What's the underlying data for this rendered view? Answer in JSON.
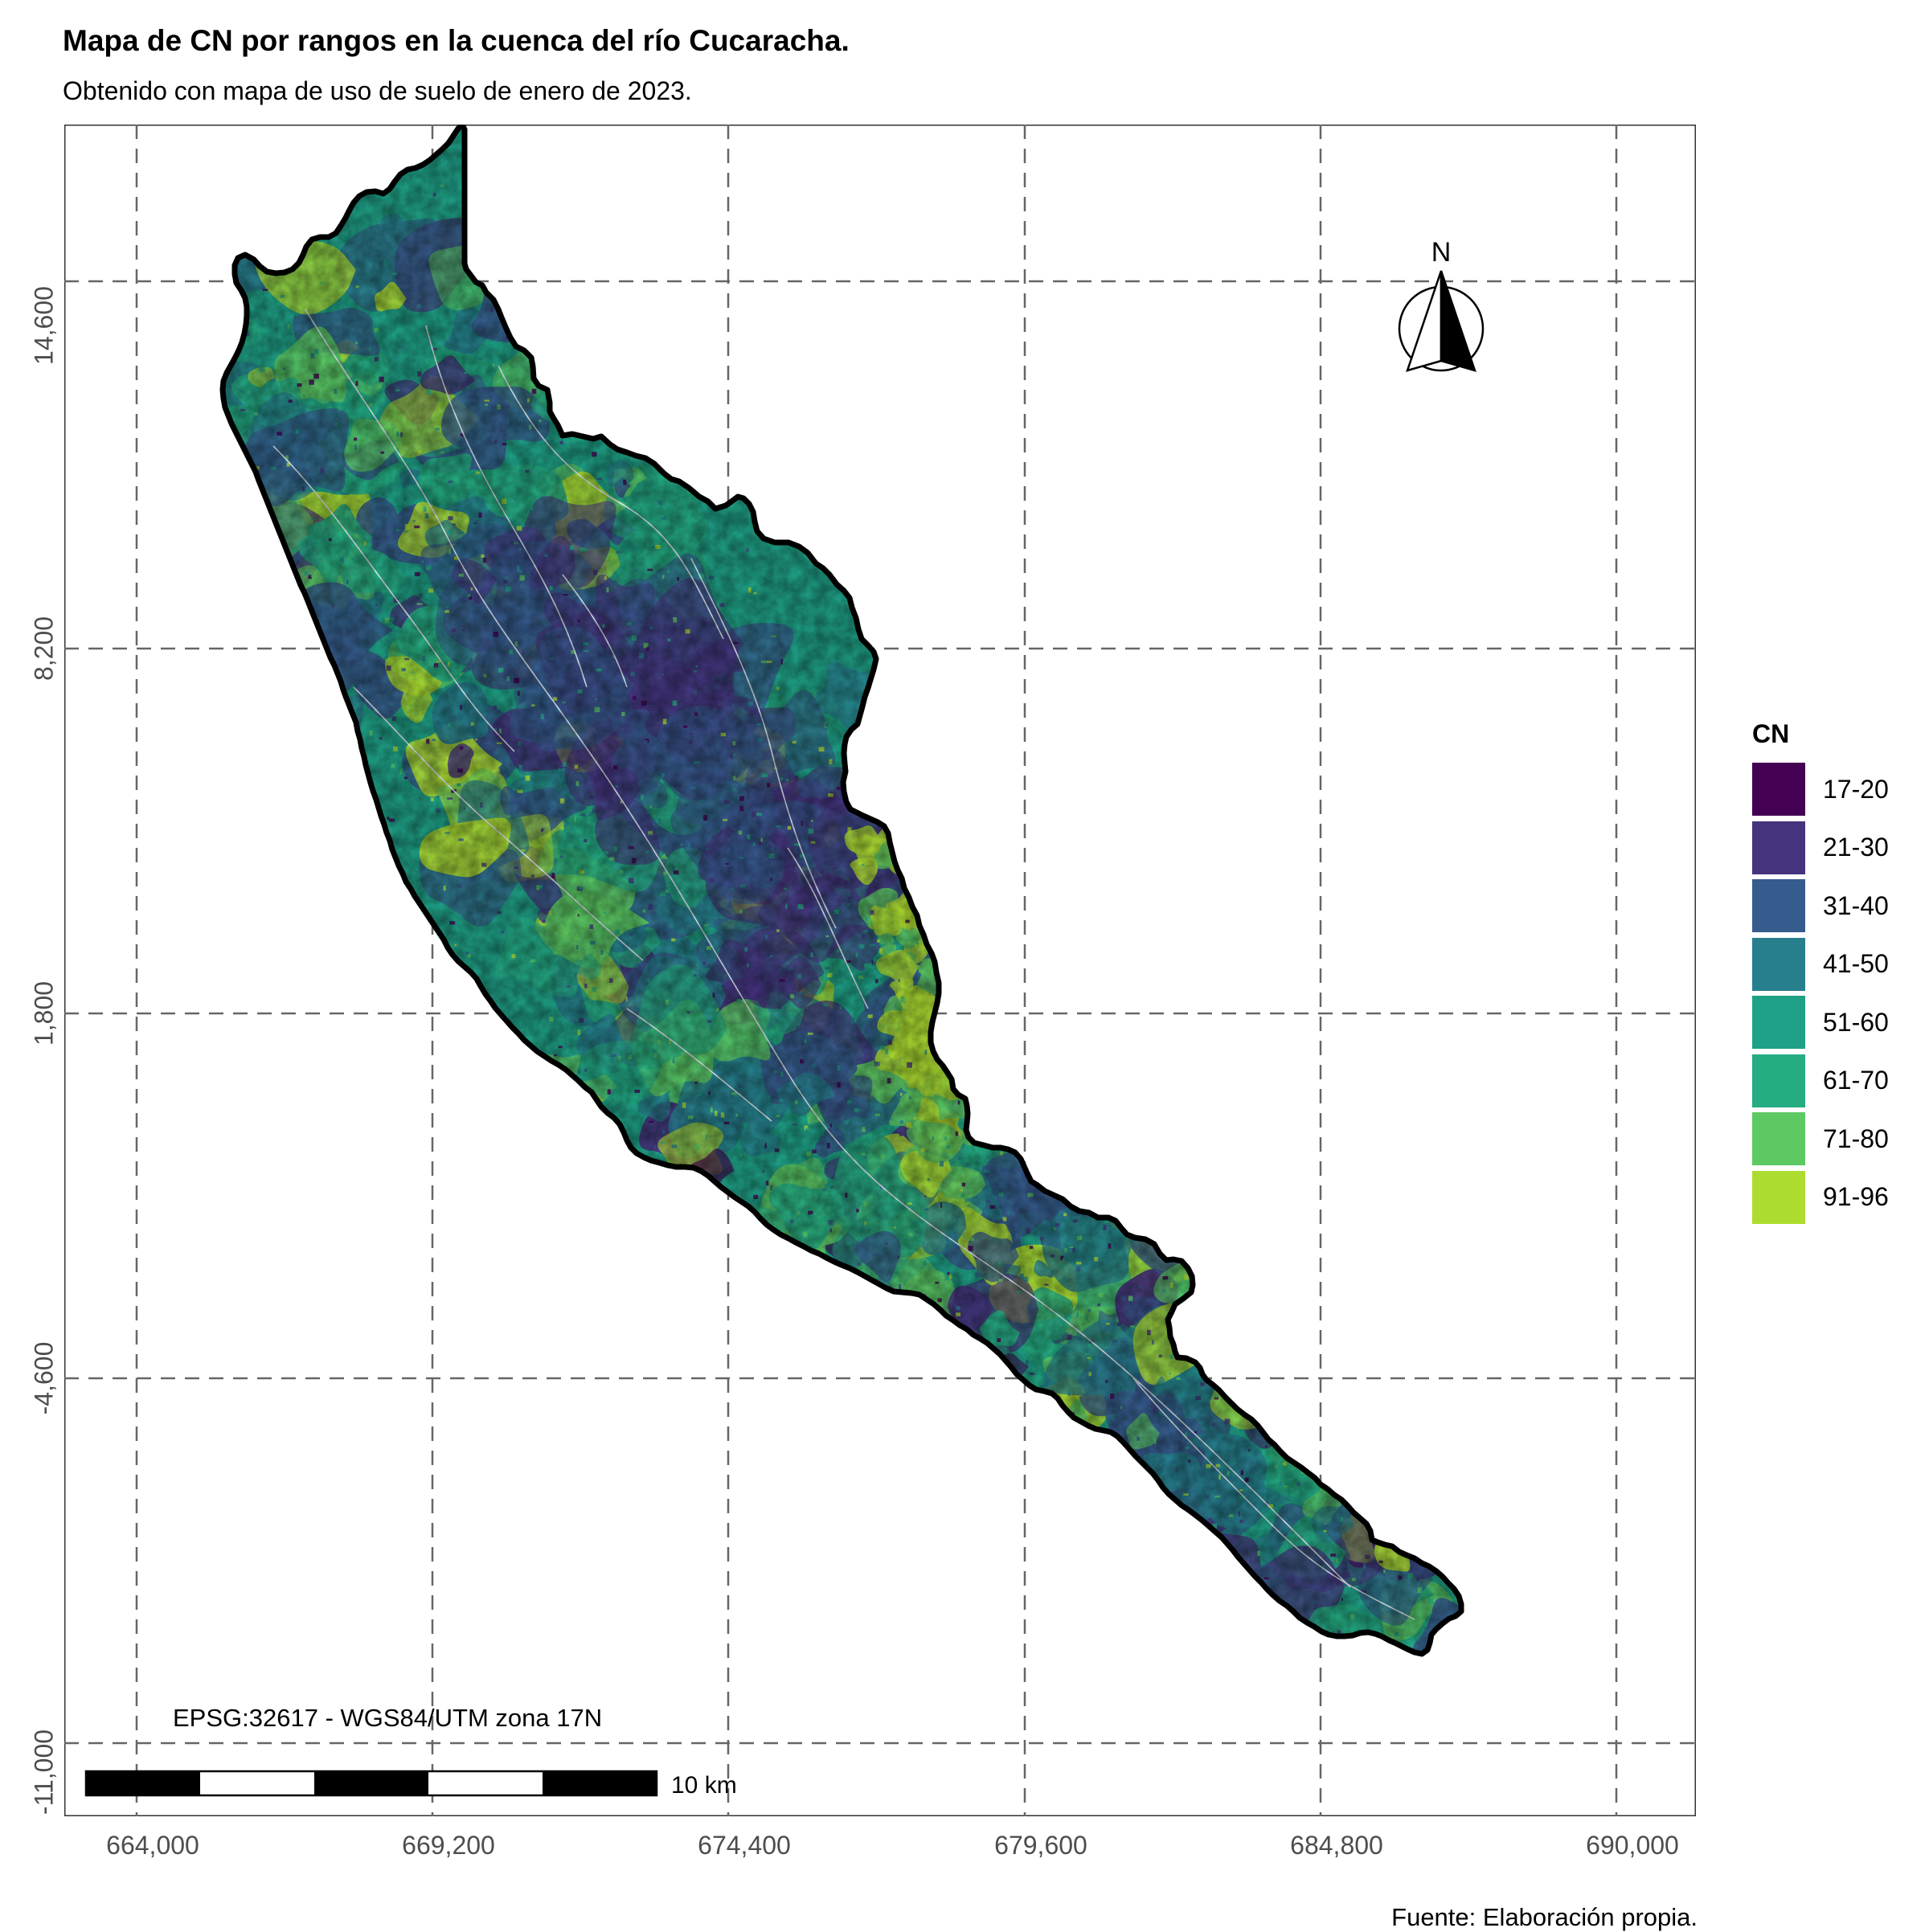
{
  "title": "Mapa de CN por rangos en la cuenca del río Cucaracha.",
  "subtitle": "Obtenido con mapa de uso de suelo de enero de 2023.",
  "caption": "Fuente: Elaboración propia.",
  "crs_label": "EPSG:32617 - WGS84/UTM zona 17N",
  "north_label": "N",
  "scale_bar": {
    "label": "10 km",
    "length_km": 10,
    "segments": 5
  },
  "axes": {
    "x_ticks": [
      "664,000",
      "669,200",
      "674,400",
      "679,600",
      "684,800",
      "690,000"
    ],
    "y_ticks": [
      "14,600",
      "8,200",
      "1,800",
      "-4,600",
      "-11,000"
    ],
    "grid": "dashed",
    "grid_color": "#666666"
  },
  "legend": {
    "title": "CN",
    "position": "right",
    "items": [
      {
        "label": "17-20",
        "color": "#440154"
      },
      {
        "label": "21-30",
        "color": "#46337E"
      },
      {
        "label": "31-40",
        "color": "#365C8D"
      },
      {
        "label": "41-50",
        "color": "#277F8E"
      },
      {
        "label": "51-60",
        "color": "#1FA187"
      },
      {
        "label": "61-70",
        "color": "#25AC82"
      },
      {
        "label": "71-80",
        "color": "#5DC963"
      },
      {
        "label": "91-96",
        "color": "#ADDC30"
      }
    ]
  },
  "watershed": {
    "outline_color": "#000000",
    "stream_color": "#dfe8ef"
  }
}
